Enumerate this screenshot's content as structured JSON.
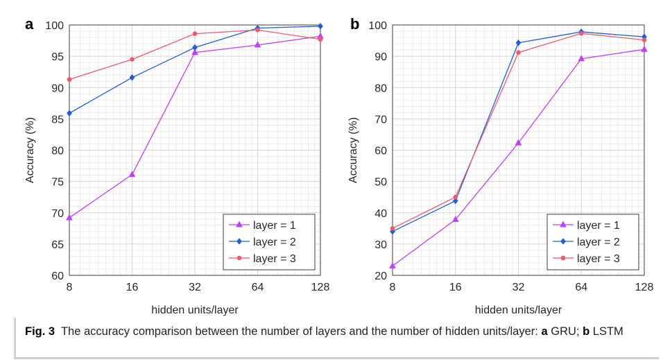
{
  "chart_data": [
    {
      "panel_label": "a",
      "type": "line",
      "x": [
        8,
        16,
        32,
        64,
        128
      ],
      "xscale": "log2",
      "xticks": [
        "8",
        "16",
        "32",
        "64",
        "128"
      ],
      "xlabel": "hidden units/layer",
      "ylabel": "Accuracy (%)",
      "ylim": [
        60,
        100
      ],
      "yticks": [
        60,
        65,
        70,
        75,
        80,
        85,
        90,
        95,
        100
      ],
      "grid": true,
      "minor_grid": true,
      "legend_position": "bottom-right",
      "series": [
        {
          "name": "layer = 1",
          "color": "#bf40ff",
          "marker": "triangle",
          "values": [
            69.2,
            76.1,
            95.6,
            96.8,
            98.2
          ]
        },
        {
          "name": "layer = 2",
          "color": "#1f5fd6",
          "marker": "diamond",
          "values": [
            85.9,
            91.6,
            96.4,
            99.5,
            99.8
          ]
        },
        {
          "name": "layer = 3",
          "color": "#f05a6e",
          "marker": "star",
          "values": [
            91.3,
            94.5,
            98.6,
            99.2,
            97.7
          ]
        }
      ]
    },
    {
      "panel_label": "b",
      "type": "line",
      "x": [
        8,
        16,
        32,
        64,
        128
      ],
      "xscale": "log2",
      "xticks": [
        "8",
        "16",
        "32",
        "64",
        "128"
      ],
      "xlabel": "hidden units/layer",
      "ylabel": "Accuracy (%)",
      "ylim": [
        20,
        100
      ],
      "yticks": [
        20,
        30,
        40,
        50,
        60,
        70,
        80,
        90,
        100
      ],
      "grid": true,
      "minor_grid": true,
      "legend_position": "bottom-right",
      "series": [
        {
          "name": "layer = 1",
          "color": "#bf40ff",
          "marker": "triangle",
          "values": [
            23.0,
            37.8,
            62.3,
            89.2,
            92.2
          ]
        },
        {
          "name": "layer = 2",
          "color": "#1f5fd6",
          "marker": "diamond",
          "values": [
            34.0,
            43.8,
            94.3,
            97.8,
            96.2
          ]
        },
        {
          "name": "layer = 3",
          "color": "#f05a6e",
          "marker": "star",
          "values": [
            35.0,
            45.0,
            91.2,
            97.3,
            95.2
          ]
        }
      ]
    }
  ],
  "caption": {
    "fig_label": "Fig. 3",
    "text_main": "The accuracy comparison between the number of layers and the number of hidden units/layer:",
    "a_label": "a",
    "a_text": "GRU;",
    "b_label": "b",
    "b_text": "LSTM"
  }
}
